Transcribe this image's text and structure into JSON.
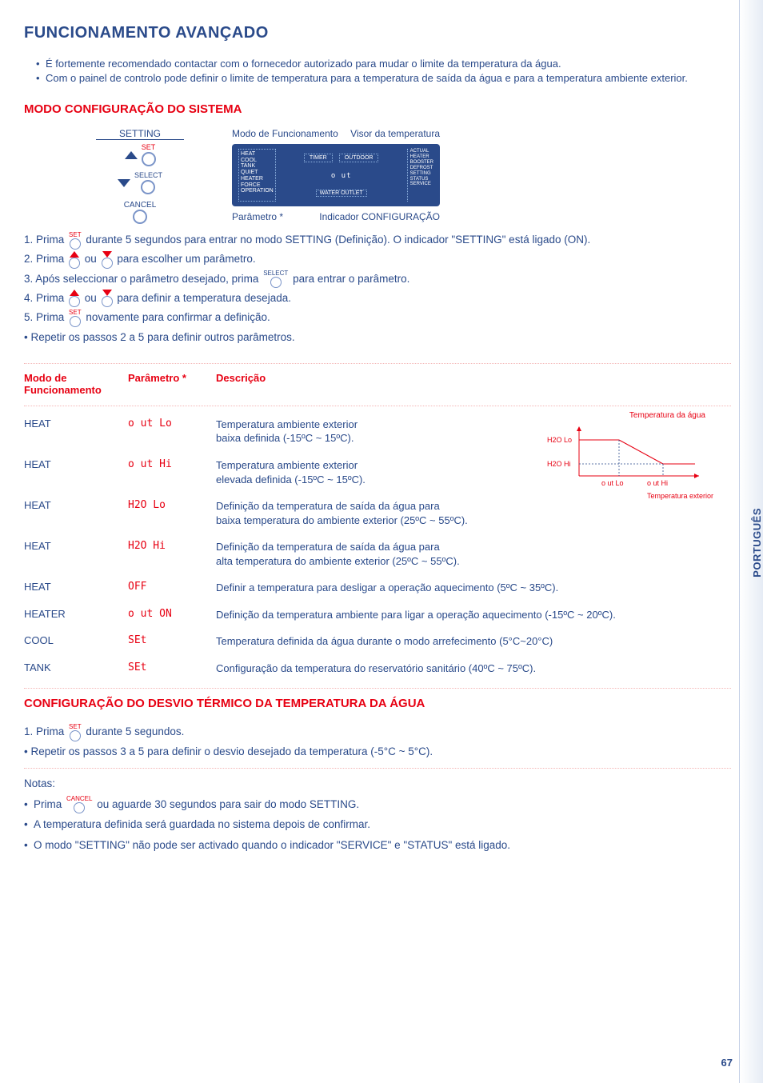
{
  "title": "FUNCIONAMENTO AVANÇADO",
  "top_bullets": [
    "É fortemente recomendado contactar com o fornecedor autorizado para mudar o limite da temperatura da água.",
    "Com o painel de controlo pode definir o limite de temperatura para a temperatura de saída da água e para a temperatura ambiente exterior."
  ],
  "section1_heading": "MODO CONFIGURAÇÃO DO SISTEMA",
  "setting_panel": {
    "title": "SETTING",
    "btn_set": "SET",
    "btn_select": "SELECT",
    "btn_cancel": "CANCEL"
  },
  "display_labels": {
    "mode": "Modo de Funcionamento",
    "temp": "Visor da temperatura",
    "param": "Parâmetro *",
    "indicator": "Indicador CONFIGURAÇÃO"
  },
  "display_content": {
    "left": "HEAT\nCOOL\nTANK\nQUIET\nHEATER\nFORCE\nOPERATION",
    "timer": "TIMER",
    "outdoor": "OUTDOOR",
    "out": "o ut",
    "water": "WATER OUTLET",
    "right": "ACTUAL\nHEATER\nBOOSTER\nDEFROST\nSETTING\nSTATUS\nSERVICE"
  },
  "steps": [
    {
      "n": "1.",
      "pre": "Prima ",
      "icon": "set",
      "post": " durante 5 segundos para entrar no modo SETTING (Definição). O indicador \"SETTING\" está ligado (ON)."
    },
    {
      "n": "2.",
      "pre": "Prima ",
      "icon": "updown",
      "post": " para escolher um parâmetro."
    },
    {
      "n": "3.",
      "pre": "Após seleccionar o parâmetro desejado, prima ",
      "icon": "select",
      "post": "  para entrar o parâmetro."
    },
    {
      "n": "4.",
      "pre": "Prima ",
      "icon": "updown",
      "post": " para definir a temperatura desejada."
    },
    {
      "n": "5.",
      "pre": "Prima ",
      "icon": "set",
      "post": " novamente para confirmar a definição."
    }
  ],
  "step_repeat": "Repetir os passos 2 a 5 para definir outros parâmetros.",
  "table": {
    "hdr_mode": "Modo de\nFuncionamento",
    "hdr_param": "Parâmetro *",
    "hdr_desc": "Descrição",
    "rows": [
      {
        "mode": "HEAT",
        "param": "o ut Lo",
        "desc": "Temperatura ambiente exterior\nbaixa definida (-15ºC ~ 15ºC)."
      },
      {
        "mode": "HEAT",
        "param": "o ut Hi",
        "desc": "Temperatura ambiente exterior\nelevada definida (-15ºC ~ 15ºC)."
      },
      {
        "mode": "HEAT",
        "param": "H2O Lo",
        "desc": "Definição da temperatura de saída da água para\nbaixa temperatura do ambiente exterior (25ºC ~ 55ºC)."
      },
      {
        "mode": "HEAT",
        "param": "H2O Hi",
        "desc": "Definição da temperatura de saída da água para\nalta temperatura do ambiente exterior (25ºC ~ 55ºC)."
      },
      {
        "mode": "HEAT",
        "param": "OFF",
        "desc": "Definir a temperatura para desligar a operação aquecimento (5ºC ~ 35ºC)."
      },
      {
        "mode": "HEATER",
        "param": "o ut ON",
        "desc": "Definição da temperatura ambiente para ligar a operação aquecimento (-15ºC ~ 20ºC)."
      },
      {
        "mode": "COOL",
        "param": "SEt",
        "desc": "Temperatura definida da água durante o modo arrefecimento (5°C~20°C)"
      },
      {
        "mode": "TANK",
        "param": "SEt",
        "desc": "Configuração da temperatura do reservatório sanitário (40ºC ~ 75ºC)."
      }
    ]
  },
  "chart": {
    "y_title": "Temperatura da água",
    "y_labels": [
      "H2O Lo",
      "H2O Hi"
    ],
    "x_labels": [
      "o ut Lo",
      "o ut Hi"
    ],
    "x_title": "Temperatura exterior",
    "stroke": "#e70012",
    "dot_stroke": "#2a4a8a"
  },
  "section2_heading": "CONFIGURAÇÃO DO DESVIO TÉRMICO DA TEMPERATURA DA ÁGUA",
  "step2_1_pre": "1.  Prima ",
  "step2_1_post": " durante 5 segundos.",
  "step2_repeat": "Repetir os passos 3 a 5 para definir o desvio desejado da temperatura (-5°C ~ 5°C).",
  "notes_heading": "Notas:",
  "notes": [
    {
      "pre": "Prima ",
      "icon": "cancel",
      "post": " ou aguarde 30 segundos para sair do modo SETTING."
    },
    {
      "text": "A temperatura definida será guardada no sistema depois de confirmar."
    },
    {
      "text": "O modo \"SETTING\" não pode ser activado quando o indicador \"SERVICE\" e \"STATUS\" está ligado."
    }
  ],
  "side_tab": "PORTUGUÊS",
  "page_num": "67",
  "colors": {
    "blue": "#2a4a8a",
    "red": "#e70012"
  }
}
